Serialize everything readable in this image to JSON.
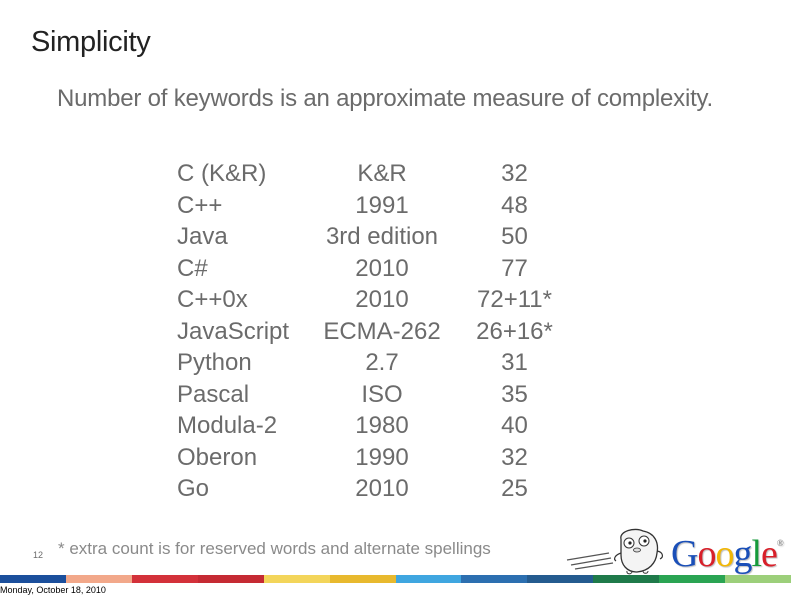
{
  "slide": {
    "title": "Simplicity",
    "subtitle": "Number of keywords is an approximate measure of complexity.",
    "number": "12",
    "footnote": "* extra count is for reserved words and alternate spellings",
    "date": "Monday, October 18, 2010"
  },
  "table": {
    "rows": [
      {
        "language": "C (K&R)",
        "version": "K&R",
        "keywords": "32"
      },
      {
        "language": "C++",
        "version": "1991",
        "keywords": "48"
      },
      {
        "language": "Java",
        "version": "3rd edition",
        "keywords": "50"
      },
      {
        "language": "C#",
        "version": "2010",
        "keywords": "77"
      },
      {
        "language": "C++0x",
        "version": "2010",
        "keywords": "72+11*"
      },
      {
        "language": "JavaScript",
        "version": "ECMA-262",
        "keywords": "26+16*"
      },
      {
        "language": "Python",
        "version": "2.7",
        "keywords": "31"
      },
      {
        "language": "Pascal",
        "version": "ISO",
        "keywords": "35"
      },
      {
        "language": "Modula-2",
        "version": "1980",
        "keywords": "40"
      },
      {
        "language": "Oberon",
        "version": "1990",
        "keywords": "32"
      },
      {
        "language": "Go",
        "version": "2010",
        "keywords": "25"
      }
    ]
  },
  "logo": {
    "letters": [
      "G",
      "o",
      "o",
      "g",
      "l",
      "e"
    ],
    "letter_colors": [
      "#1a4fb8",
      "#d8202a",
      "#f2b705",
      "#1a4fb8",
      "#159a3a",
      "#d8202a"
    ],
    "trademark": "®"
  },
  "color_bar": [
    "#1b4f9c",
    "#f2a88a",
    "#d3313a",
    "#c52a33",
    "#f3d55a",
    "#e8b92e",
    "#3fa6e0",
    "#2c6fb0",
    "#245b8f",
    "#1f7a4a",
    "#2aa453",
    "#9ccf7a"
  ]
}
